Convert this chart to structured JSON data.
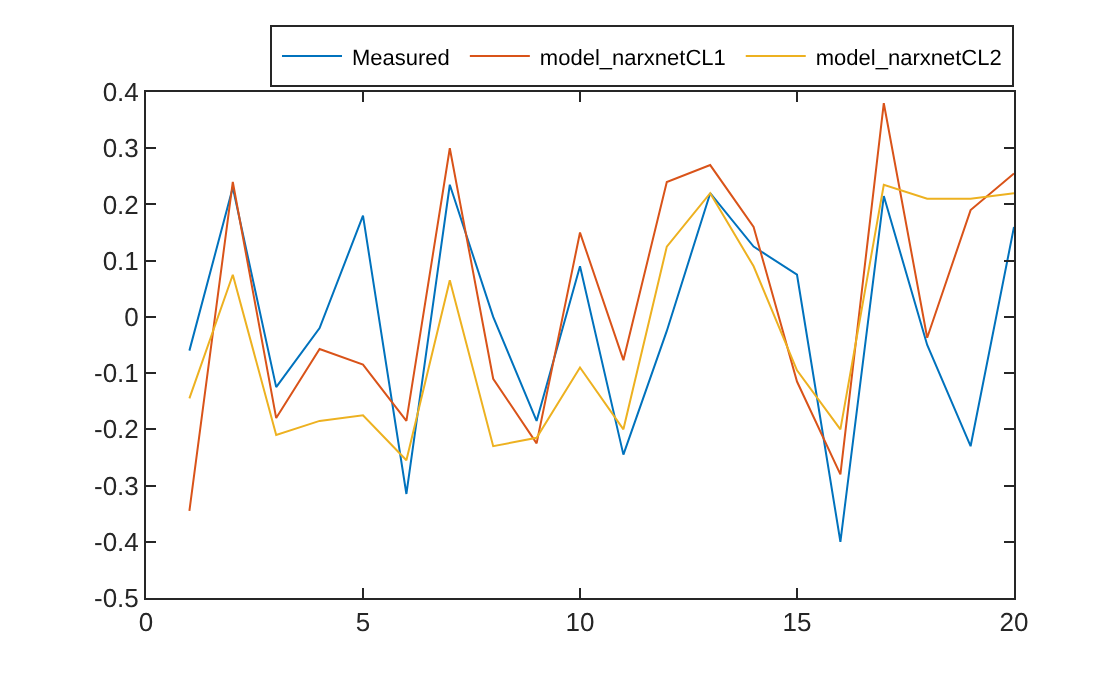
{
  "chart_data": {
    "type": "line",
    "x": [
      1,
      2,
      3,
      4,
      5,
      6,
      7,
      8,
      9,
      10,
      11,
      12,
      13,
      14,
      15,
      16,
      17,
      18,
      19,
      20
    ],
    "series": [
      {
        "name": "Measured",
        "color": "#0072bd",
        "values": [
          -0.06,
          0.23,
          -0.125,
          -0.02,
          0.18,
          -0.315,
          0.235,
          0.0,
          -0.185,
          0.09,
          -0.245,
          -0.025,
          0.22,
          0.125,
          0.075,
          -0.4,
          0.215,
          -0.05,
          -0.23,
          0.16
        ]
      },
      {
        "name": "model_narxnetCL1",
        "color": "#d95319",
        "values": [
          -0.345,
          0.24,
          -0.18,
          -0.057,
          -0.085,
          -0.185,
          0.3,
          -0.11,
          -0.225,
          0.15,
          -0.077,
          0.24,
          0.27,
          0.16,
          -0.115,
          -0.28,
          0.38,
          -0.037,
          0.19,
          0.255
        ]
      },
      {
        "name": "model_narxnetCL2",
        "color": "#edb120",
        "values": [
          -0.145,
          0.075,
          -0.21,
          -0.185,
          -0.175,
          -0.255,
          0.065,
          -0.23,
          -0.215,
          -0.09,
          -0.2,
          0.125,
          0.22,
          0.09,
          -0.095,
          -0.2,
          0.235,
          0.21,
          0.21,
          0.22
        ]
      }
    ],
    "xlim": [
      0,
      20
    ],
    "xticks": [
      0,
      5,
      10,
      15,
      20
    ],
    "ylim": [
      -0.5,
      0.4
    ],
    "yticks": [
      -0.5,
      -0.4,
      -0.3,
      -0.2,
      -0.1,
      0,
      0.1,
      0.2,
      0.3,
      0.4
    ],
    "grid": false,
    "legend": "top right",
    "marker": "none",
    "line_style": "solid"
  }
}
